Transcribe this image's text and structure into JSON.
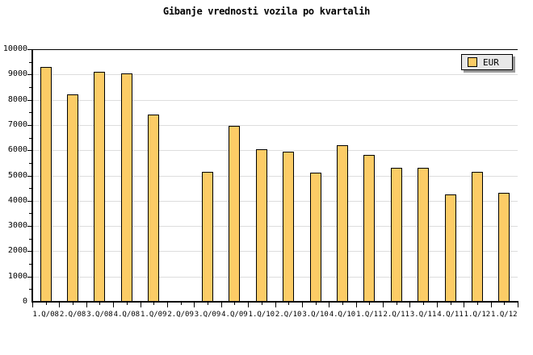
{
  "title": "Gibanje vrednosti vozila po kvartalih",
  "legend": {
    "label": "EUR"
  },
  "colors": {
    "background": "#FFFFFF",
    "bar_fill": "#FCCC66",
    "bar_border": "#000000",
    "grid": "#DDDDDD",
    "axis": "#000000",
    "legend_bg": "#E8E8E8",
    "legend_shadow": "#999999",
    "text": "#000000"
  },
  "chart_data": {
    "type": "bar",
    "title": "Gibanje vrednosti vozila po kvartalih",
    "categories": [
      "1.Q/08",
      "2.Q/08",
      "3.Q/08",
      "4.Q/08",
      "1.Q/09",
      "2.Q/09",
      "3.Q/09",
      "4.Q/09",
      "1.Q/10",
      "2.Q/10",
      "3.Q/10",
      "4.Q/10",
      "1.Q/11",
      "2.Q/11",
      "3.Q/11",
      "4.Q/11",
      "1.Q/12",
      "1.Q/12"
    ],
    "series": [
      {
        "name": "EUR",
        "values": [
          9300,
          8200,
          9100,
          9050,
          7400,
          null,
          5150,
          6950,
          6050,
          5950,
          5100,
          6200,
          5800,
          5300,
          5300,
          4250,
          5150,
          4300
        ]
      }
    ],
    "missing_value_category": "2.Q/09",
    "xlabel": "",
    "ylabel": "",
    "ylim": [
      0,
      10000
    ],
    "ytick_step": 1000,
    "ytick_minor_step": 500,
    "ytick_labels": [
      "0",
      "1000",
      "2000",
      "3000",
      "4000",
      "5000",
      "6000",
      "7000",
      "8000",
      "9000",
      "10000"
    ],
    "grid": "horizontal-major",
    "legend_position": "top-right"
  }
}
